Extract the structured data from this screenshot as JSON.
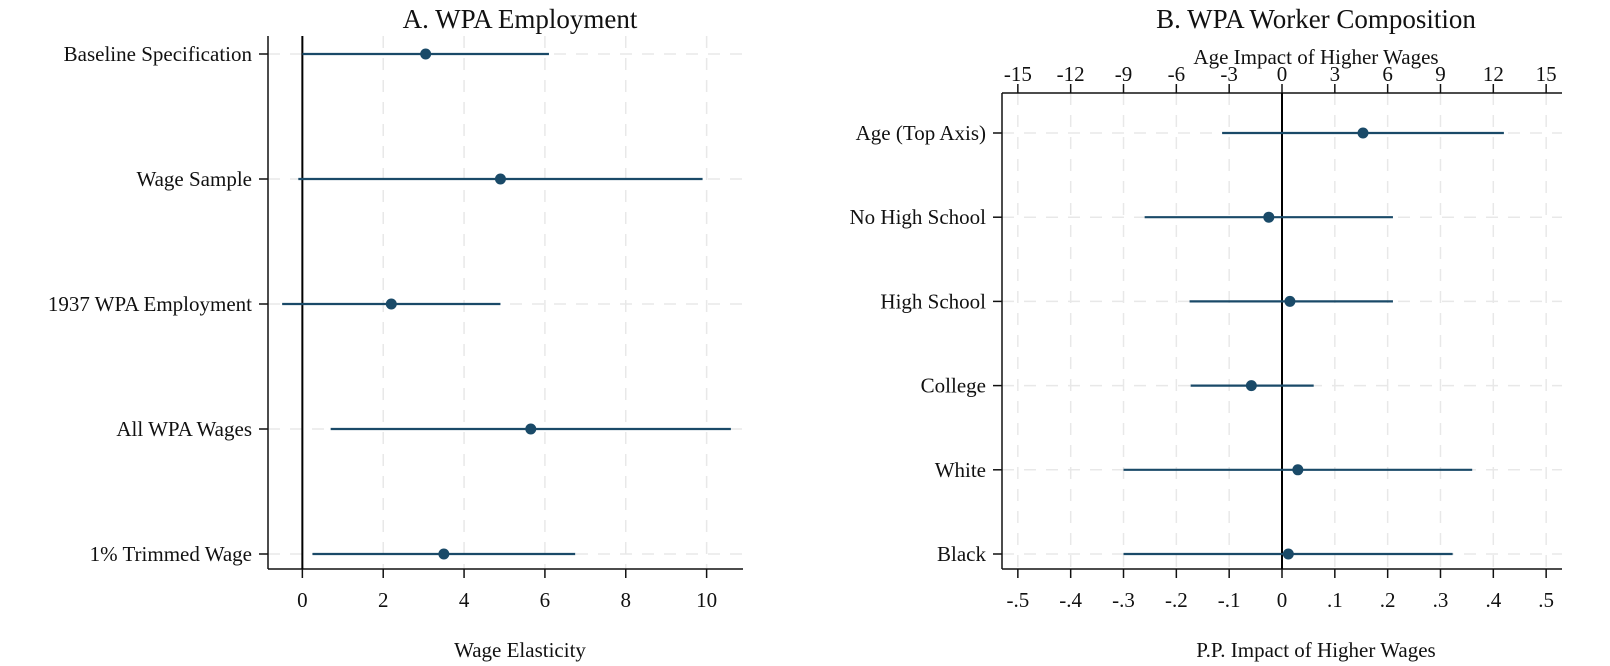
{
  "chart_data": [
    {
      "type": "scatter",
      "subtype": "coefficient-plot",
      "title": "A. WPA Employment",
      "xlabel": "Wage Elasticity",
      "xlim": [
        -0.85,
        10.9
      ],
      "xticks": [
        0,
        2,
        4,
        6,
        8,
        10
      ],
      "xtick_labels": [
        "0",
        "2",
        "4",
        "6",
        "8",
        "10"
      ],
      "grid": true,
      "reference_line": 0,
      "color": "#1a4a68",
      "categories": [
        "Baseline Specification",
        "Wage Sample",
        "1937 WPA Employment",
        "All WPA Wages",
        "1% Trimmed Wage"
      ],
      "points": [
        {
          "label": "Baseline Specification",
          "estimate": 3.05,
          "ci_low": 0.0,
          "ci_high": 6.1
        },
        {
          "label": "Wage Sample",
          "estimate": 4.9,
          "ci_low": -0.1,
          "ci_high": 9.9
        },
        {
          "label": "1937 WPA Employment",
          "estimate": 2.2,
          "ci_low": -0.5,
          "ci_high": 4.9
        },
        {
          "label": "All WPA Wages",
          "estimate": 5.65,
          "ci_low": 0.7,
          "ci_high": 10.6
        },
        {
          "label": "1% Trimmed Wage",
          "estimate": 3.5,
          "ci_low": 0.25,
          "ci_high": 6.75
        }
      ]
    },
    {
      "type": "scatter",
      "subtype": "coefficient-plot",
      "title": "B. WPA Worker Composition",
      "xlabel": "P.P. Impact of Higher Wages",
      "x2label": "Age Impact of Higher Wages",
      "xlim": [
        -0.53,
        0.53
      ],
      "xticks": [
        -0.5,
        -0.4,
        -0.3,
        -0.2,
        -0.1,
        0,
        0.1,
        0.2,
        0.3,
        0.4,
        0.5
      ],
      "xtick_labels": [
        "-.5",
        "-.4",
        "-.3",
        "-.2",
        "-.1",
        "0",
        ".1",
        ".2",
        ".3",
        ".4",
        ".5"
      ],
      "x2lim": [
        -15.9,
        15.9
      ],
      "x2ticks": [
        -15,
        -12,
        -9,
        -6,
        -3,
        0,
        3,
        6,
        9,
        12,
        15
      ],
      "x2tick_labels": [
        "-15",
        "-12",
        "-9",
        "-6",
        "-3",
        "0",
        "3",
        "6",
        "9",
        "12",
        "15"
      ],
      "grid": true,
      "reference_line": 0,
      "color": "#1a4a68",
      "categories": [
        "Age (Top Axis)",
        "No High School",
        "High School",
        "College",
        "White",
        "Black"
      ],
      "points": [
        {
          "label": "Age (Top Axis)",
          "axis": "top",
          "estimate": 4.6,
          "ci_low": -3.4,
          "ci_high": 12.6
        },
        {
          "label": "No High School",
          "axis": "bottom",
          "estimate": -0.025,
          "ci_low": -0.26,
          "ci_high": 0.21
        },
        {
          "label": "High School",
          "axis": "bottom",
          "estimate": 0.015,
          "ci_low": -0.175,
          "ci_high": 0.21
        },
        {
          "label": "College",
          "axis": "bottom",
          "estimate": -0.058,
          "ci_low": -0.173,
          "ci_high": 0.06
        },
        {
          "label": "White",
          "axis": "bottom",
          "estimate": 0.03,
          "ci_low": -0.3,
          "ci_high": 0.36
        },
        {
          "label": "Black",
          "axis": "bottom",
          "estimate": 0.012,
          "ci_low": -0.3,
          "ci_high": 0.323
        }
      ]
    }
  ]
}
